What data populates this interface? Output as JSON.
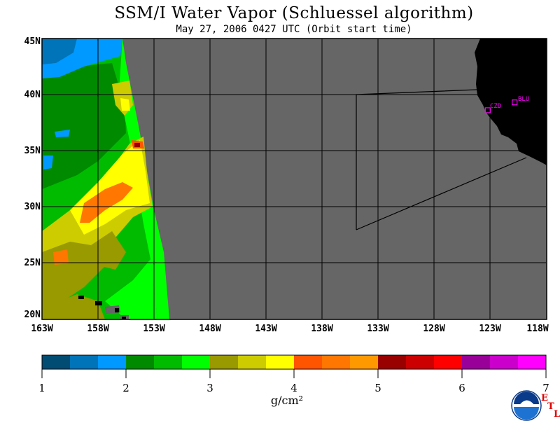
{
  "title": "SSM/I Water Vapor (Schluessel algorithm)",
  "subtitle": "May 27, 2006  0427 UTC  (Orbit start time)",
  "map": {
    "lat_labels": [
      "45N",
      "40N",
      "35N",
      "30N",
      "25N",
      "20N"
    ],
    "lon_labels": [
      "163W",
      "158W",
      "153W",
      "148W",
      "143W",
      "138W",
      "133W",
      "128W",
      "123W",
      "118W"
    ],
    "stations": [
      {
        "id": "CZD",
        "lon": -123.2,
        "lat": 38.6
      },
      {
        "id": "BLU",
        "lon": -120.8,
        "lat": 39.3
      }
    ],
    "colors": {
      "no_data": "#666666",
      "land": "#000000",
      "grid": "#000000"
    }
  },
  "colorbar": {
    "tick_labels": [
      "1",
      "2",
      "3",
      "4",
      "5",
      "6",
      "7"
    ],
    "units": "g/cm²",
    "colors": [
      "#004c73",
      "#0074b8",
      "#0099ff",
      "#008a00",
      "#00bb00",
      "#00ff00",
      "#999900",
      "#cccc00",
      "#ffff00",
      "#ff5500",
      "#ff7700",
      "#ff9900",
      "#990000",
      "#cc0000",
      "#ff0000",
      "#990099",
      "#cc00cc",
      "#ff00ff"
    ]
  },
  "logo": {
    "name": "NOAA",
    "letters": [
      "E",
      "T",
      "L"
    ]
  }
}
